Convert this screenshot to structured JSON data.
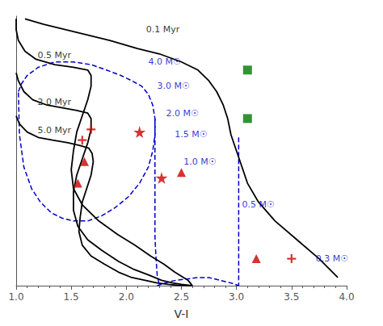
{
  "chart_data": {
    "type": "line",
    "xlabel": "V-I",
    "xlim": [
      1.0,
      4.0
    ],
    "ylim": [
      0.0,
      1.0
    ],
    "xticks": [
      {
        "value": 1.0,
        "label": "1.0"
      },
      {
        "value": 1.5,
        "label": "1.5"
      },
      {
        "value": 2.0,
        "label": "2.0"
      },
      {
        "value": 2.5,
        "label": "2.5"
      },
      {
        "value": 3.0,
        "label": "3.0"
      },
      {
        "value": 3.5,
        "label": "3.5"
      },
      {
        "value": 4.0,
        "label": "4.0"
      }
    ],
    "tick_labels": "x",
    "grid": false,
    "series": [
      {
        "type": "line",
        "color": "#000000",
        "line_style": "solid",
        "x": [
          1.08,
          1.25,
          1.55,
          1.85,
          2.1,
          2.3,
          2.5,
          2.65,
          2.75,
          2.82,
          2.88,
          2.92,
          2.95,
          3.0,
          3.05,
          3.1,
          3.2,
          3.35,
          3.55,
          3.75,
          3.92
        ],
        "values": [
          0.99,
          0.97,
          0.94,
          0.91,
          0.88,
          0.86,
          0.83,
          0.8,
          0.76,
          0.72,
          0.67,
          0.62,
          0.56,
          0.5,
          0.44,
          0.38,
          0.31,
          0.24,
          0.17,
          0.1,
          0.03
        ]
      },
      {
        "type": "line",
        "color": "#000000",
        "line_style": "solid",
        "x": [
          1.0,
          1.0,
          1.02,
          1.08,
          1.18,
          1.35,
          1.52,
          1.65,
          1.68,
          1.68,
          1.65,
          1.6,
          1.55,
          1.52,
          1.5,
          1.52,
          1.6,
          1.75,
          1.92,
          2.08,
          2.22,
          2.34,
          2.44,
          2.52,
          2.56,
          2.58,
          2.6
        ],
        "values": [
          0.99,
          0.95,
          0.91,
          0.87,
          0.84,
          0.82,
          0.81,
          0.8,
          0.78,
          0.74,
          0.69,
          0.63,
          0.57,
          0.5,
          0.43,
          0.36,
          0.3,
          0.24,
          0.19,
          0.15,
          0.11,
          0.08,
          0.05,
          0.03,
          0.02,
          0.01,
          0.0
        ]
      },
      {
        "type": "line",
        "color": "#000000",
        "line_style": "solid",
        "x": [
          1.0,
          1.02,
          1.07,
          1.15,
          1.28,
          1.42,
          1.55,
          1.65,
          1.68,
          1.68,
          1.65,
          1.6,
          1.55,
          1.52,
          1.52,
          1.56,
          1.65,
          1.78,
          1.93,
          2.07,
          2.2,
          2.32,
          2.42,
          2.5,
          2.56,
          2.6
        ],
        "values": [
          0.79,
          0.76,
          0.72,
          0.69,
          0.67,
          0.66,
          0.65,
          0.64,
          0.62,
          0.58,
          0.53,
          0.47,
          0.41,
          0.35,
          0.28,
          0.22,
          0.17,
          0.13,
          0.09,
          0.06,
          0.04,
          0.02,
          0.01,
          0.005,
          0.002,
          0.0
        ]
      },
      {
        "type": "line",
        "color": "#000000",
        "line_style": "solid",
        "x": [
          1.0,
          1.03,
          1.1,
          1.2,
          1.33,
          1.47,
          1.58,
          1.66,
          1.69,
          1.7,
          1.68,
          1.64,
          1.6,
          1.58,
          1.57,
          1.6,
          1.68,
          1.8,
          1.93,
          2.05,
          2.17,
          2.28,
          2.38,
          2.46,
          2.52,
          2.57,
          2.6
        ],
        "values": [
          0.63,
          0.6,
          0.57,
          0.55,
          0.54,
          0.53,
          0.52,
          0.51,
          0.49,
          0.46,
          0.41,
          0.36,
          0.31,
          0.25,
          0.2,
          0.15,
          0.11,
          0.08,
          0.05,
          0.03,
          0.02,
          0.01,
          0.005,
          0.002,
          0.001,
          0.0,
          0.0
        ]
      },
      {
        "type": "line",
        "color": "#0000cc",
        "line_style": "dashed",
        "x": [
          1.02,
          1.05,
          1.1,
          1.2,
          1.35,
          1.52,
          1.68,
          1.82,
          1.95,
          2.05,
          2.14,
          2.2,
          2.24,
          2.26,
          2.26,
          2.24,
          2.2,
          2.12,
          2.02,
          1.9,
          1.78,
          1.65,
          1.52,
          1.42,
          1.32,
          1.22,
          1.14,
          1.07,
          1.03,
          1.02
        ],
        "values": [
          0.72,
          0.75,
          0.78,
          0.81,
          0.83,
          0.83,
          0.82,
          0.8,
          0.78,
          0.76,
          0.74,
          0.71,
          0.67,
          0.62,
          0.56,
          0.5,
          0.44,
          0.38,
          0.33,
          0.29,
          0.26,
          0.24,
          0.24,
          0.25,
          0.27,
          0.31,
          0.36,
          0.44,
          0.56,
          0.72
        ]
      },
      {
        "type": "line",
        "color": "#0000cc",
        "line_style": "dashed",
        "x": [
          2.26,
          2.26,
          2.26,
          2.26,
          2.26,
          2.27,
          2.28,
          2.3
        ],
        "values": [
          0.62,
          0.5,
          0.38,
          0.28,
          0.18,
          0.1,
          0.04,
          0.0
        ]
      },
      {
        "type": "line",
        "color": "#0000cc",
        "line_style": "dashed",
        "x": [
          3.02,
          3.02,
          3.02,
          3.02,
          3.02,
          3.02
        ],
        "values": [
          0.55,
          0.44,
          0.33,
          0.22,
          0.11,
          0.0
        ]
      },
      {
        "type": "line",
        "color": "#0000cc",
        "line_style": "dashed",
        "x": [
          2.28,
          2.35,
          2.45,
          2.55,
          2.65,
          2.75,
          2.85,
          2.95,
          3.02
        ],
        "values": [
          0.0,
          0.01,
          0.02,
          0.025,
          0.03,
          0.03,
          0.02,
          0.01,
          0.0
        ]
      },
      {
        "type": "scatter",
        "color": "#cc0000",
        "marker": "triangle",
        "x": [
          1.62,
          1.56,
          2.5,
          3.18
        ],
        "values": [
          0.46,
          0.38,
          0.42,
          0.1
        ]
      },
      {
        "type": "scatter",
        "color": "#cc0000",
        "marker": "star",
        "x": [
          2.12,
          2.32
        ],
        "values": [
          0.57,
          0.4
        ]
      },
      {
        "type": "scatter",
        "color": "#cc0000",
        "marker": "plus",
        "x": [
          1.68,
          1.6,
          3.5
        ],
        "values": [
          0.58,
          0.54,
          0.1
        ]
      },
      {
        "type": "scatter",
        "color": "#007700",
        "marker": "square",
        "x": [
          3.1,
          3.1
        ],
        "values": [
          0.8,
          0.62
        ]
      }
    ],
    "annotations": [
      {
        "text": "4.0 M☉",
        "x": 2.2,
        "y": 0.83,
        "color": "#0000cc"
      },
      {
        "text": "3.0 M☉",
        "x": 2.28,
        "y": 0.74,
        "color": "#0000cc"
      },
      {
        "text": "2.0 M☉",
        "x": 2.36,
        "y": 0.64,
        "color": "#0000cc"
      },
      {
        "text": "1.5 M☉",
        "x": 2.44,
        "y": 0.56,
        "color": "#0000cc"
      },
      {
        "text": "1.0 M☉",
        "x": 2.52,
        "y": 0.46,
        "color": "#0000cc"
      },
      {
        "text": "0.5 M☉",
        "x": 3.05,
        "y": 0.3,
        "color": "#0000cc"
      },
      {
        "text": "0.3 M☉",
        "x": 3.72,
        "y": 0.1,
        "color": "#0000cc"
      },
      {
        "text": "0.1 Myr",
        "x": 2.18,
        "y": 0.95,
        "color": "#000000"
      },
      {
        "text": "0.5 Myr",
        "x": 1.195,
        "y": 0.855,
        "color": "#000000"
      },
      {
        "text": "2.0 Myr",
        "x": 1.195,
        "y": 0.68,
        "color": "#000000"
      },
      {
        "text": "5.0 Myr",
        "x": 1.195,
        "y": 0.575,
        "color": "#000000"
      }
    ]
  }
}
